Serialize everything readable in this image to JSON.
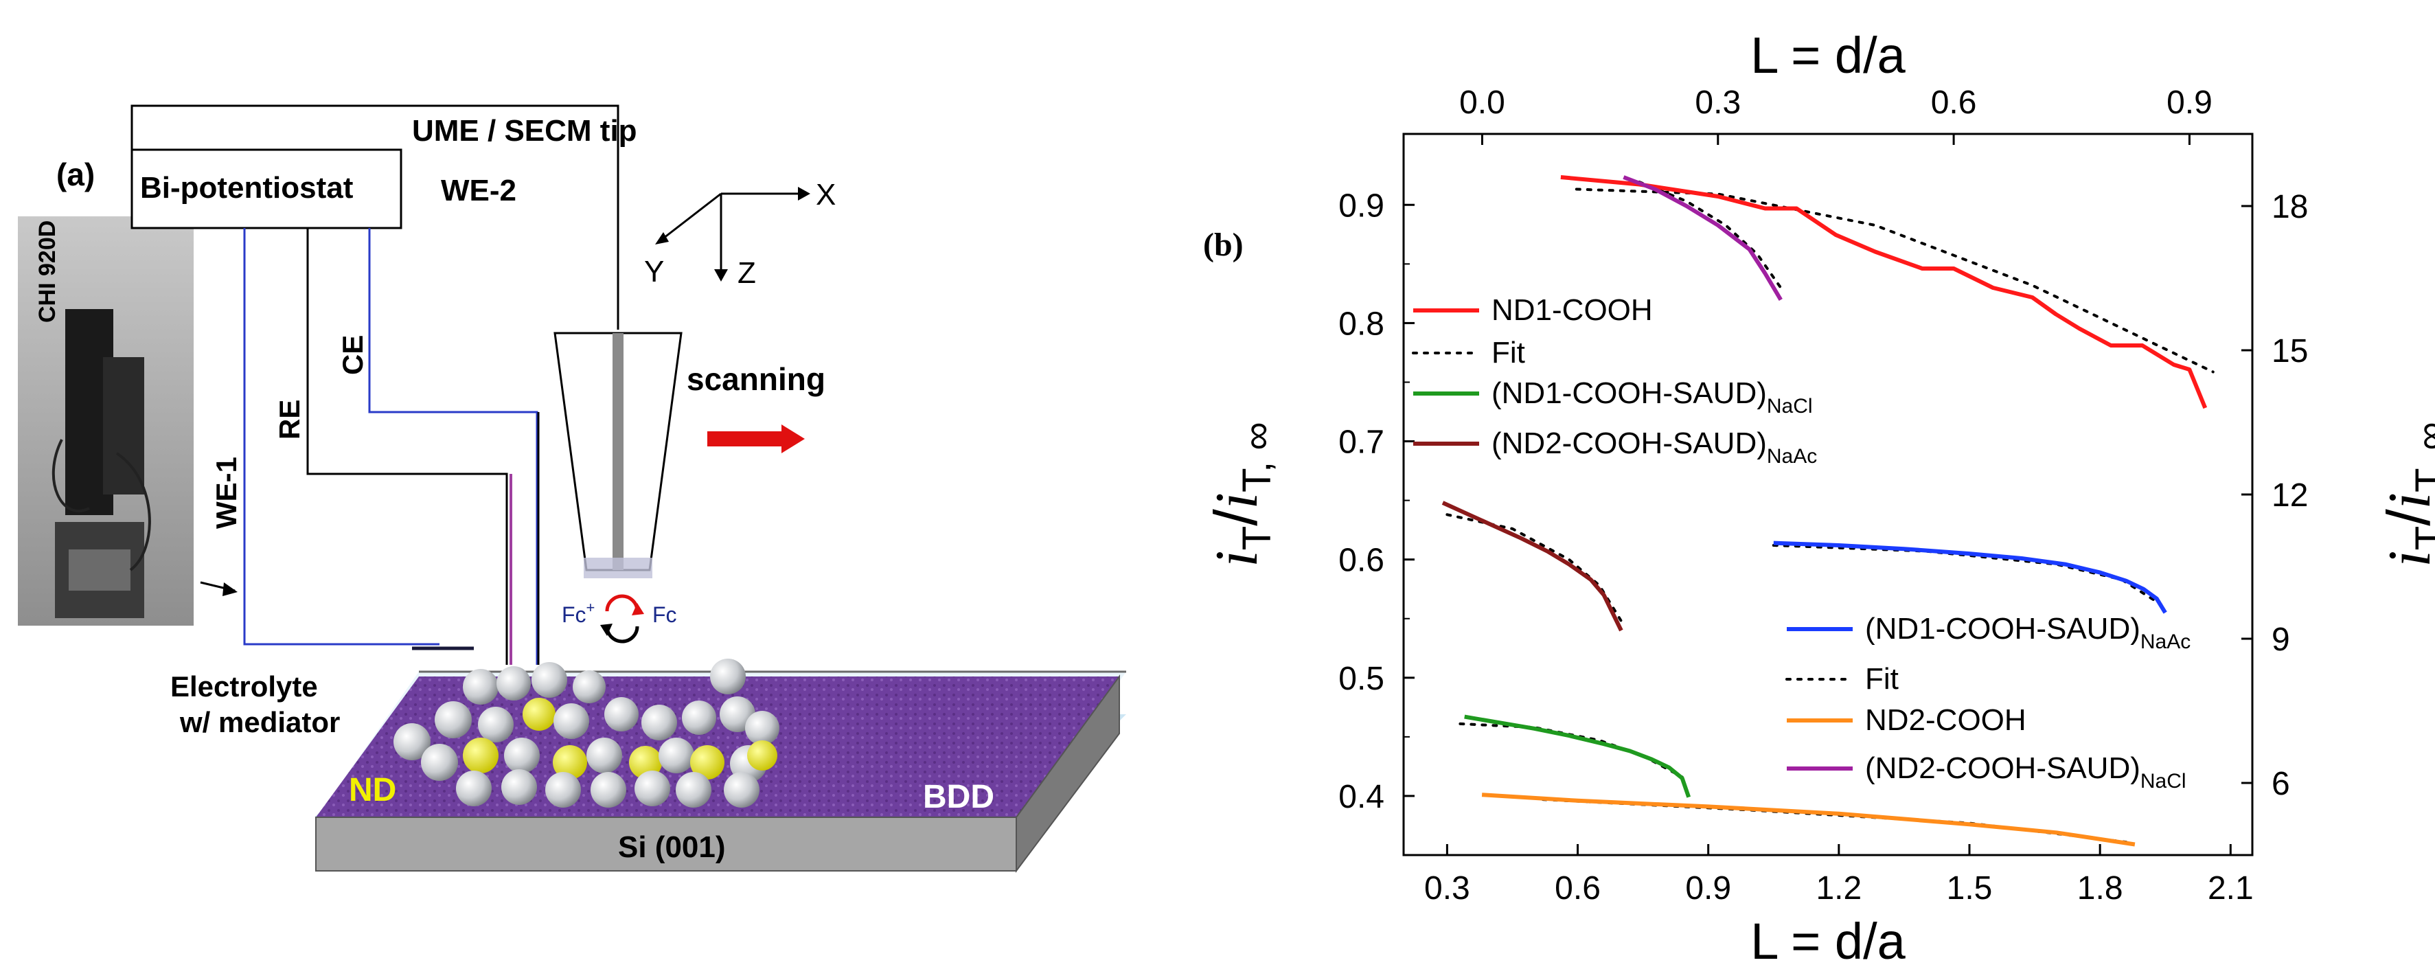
{
  "panel_a": {
    "label": "(a)",
    "instrument": "CHI 920D",
    "potentiostat": "Bi-potentiostat",
    "tip_label": "UME / SECM tip",
    "we2": "WE-2",
    "we1": "WE-1",
    "re": "RE",
    "ce": "CE",
    "axis_x": "X",
    "axis_y": "Y",
    "axis_z": "Z",
    "scanning": "scanning",
    "fc_plus": "Fc",
    "fc_plus_sup": "+",
    "fc": "Fc",
    "electrolyte_line1": "Electrolyte",
    "electrolyte_line2": "w/ mediator",
    "nd": "ND",
    "bdd": "BDD",
    "substrate": "Si (001)"
  },
  "chart_data": {
    "type": "line",
    "panel_label": "(b)",
    "xlabel": "L = d/a",
    "x2label": "L = d/a",
    "ylabel_main": "i",
    "ylabel_sub": "T",
    "ylabel_den_main": "i",
    "ylabel_den_sub": "T, ∞",
    "xlim": [
      0.2,
      2.15
    ],
    "xticks": [
      "0.3",
      "0.6",
      "0.9",
      "1.2",
      "1.5",
      "1.8",
      "2.1"
    ],
    "x2lim": [
      -0.1,
      0.98
    ],
    "x2ticks": [
      "0.0",
      "0.3",
      "0.6",
      "0.9"
    ],
    "ylim": [
      0.35,
      0.96
    ],
    "yticks": [
      "0.4",
      "0.5",
      "0.6",
      "0.7",
      "0.8",
      "0.9"
    ],
    "y2lim": [
      4.5,
      19.5
    ],
    "y2ticks": [
      "6",
      "9",
      "12",
      "15",
      "18"
    ],
    "fit_label": "Fit",
    "series": [
      {
        "name": "ND1-COOH",
        "color": "#ff1a1a",
        "axis": "top-right",
        "x": [
          0.1,
          0.2,
          0.3,
          0.36,
          0.4,
          0.45,
          0.5,
          0.56,
          0.6,
          0.65,
          0.7,
          0.73,
          0.76,
          0.8,
          0.84,
          0.88,
          0.9,
          0.92
        ],
        "y": [
          18.6,
          18.45,
          18.2,
          17.95,
          17.95,
          17.4,
          17.05,
          16.7,
          16.7,
          16.3,
          16.1,
          15.75,
          15.45,
          15.1,
          15.1,
          14.7,
          14.6,
          13.8
        ]
      },
      {
        "name": "ND2-COOH-SAUD",
        "subscript": "NaCl",
        "color": "#a020a0",
        "axis": "top-right",
        "x": [
          0.18,
          0.22,
          0.26,
          0.3,
          0.34,
          0.36,
          0.38
        ],
        "y": [
          18.6,
          18.35,
          18.0,
          17.6,
          17.1,
          16.6,
          16.05
        ]
      },
      {
        "name": "ND1-COOH-SAUD",
        "subscript": "NaAc",
        "color": "#1a3cff",
        "axis": "bottom-left",
        "x": [
          1.05,
          1.2,
          1.35,
          1.5,
          1.62,
          1.72,
          1.8,
          1.86,
          1.9,
          1.93,
          1.95
        ],
        "y": [
          0.614,
          0.612,
          0.609,
          0.605,
          0.601,
          0.596,
          0.589,
          0.582,
          0.575,
          0.567,
          0.555
        ]
      },
      {
        "name": "ND1-COOH-SAUD",
        "subscript": "NaCl",
        "color": "#1f9a1f",
        "axis": "bottom-left",
        "x": [
          0.34,
          0.42,
          0.5,
          0.58,
          0.66,
          0.72,
          0.77,
          0.81,
          0.84,
          0.855
        ],
        "y": [
          0.467,
          0.462,
          0.457,
          0.451,
          0.444,
          0.438,
          0.431,
          0.424,
          0.415,
          0.399
        ]
      },
      {
        "name": "ND2-COOH-SAUD",
        "subscript": "NaAc",
        "color": "#8b1a1a",
        "axis": "bottom-left",
        "x": [
          0.29,
          0.35,
          0.41,
          0.47,
          0.53,
          0.58,
          0.63,
          0.66,
          0.68,
          0.7
        ],
        "y": [
          0.648,
          0.638,
          0.628,
          0.618,
          0.607,
          0.596,
          0.583,
          0.57,
          0.555,
          0.54
        ]
      },
      {
        "name": "ND2-COOH",
        "color": "#ff8c1a",
        "axis": "bottom-left",
        "x": [
          0.38,
          0.6,
          0.9,
          1.2,
          1.5,
          1.7,
          1.88
        ],
        "y": [
          0.401,
          0.396,
          0.391,
          0.385,
          0.376,
          0.369,
          0.359
        ]
      }
    ],
    "fits": [
      {
        "axis": "top-right",
        "x": [
          0.12,
          0.3,
          0.5,
          0.7,
          0.93
        ],
        "y": [
          18.35,
          18.25,
          17.6,
          16.35,
          14.55
        ]
      },
      {
        "axis": "top-right",
        "x": [
          0.2,
          0.26,
          0.31,
          0.35,
          0.38
        ],
        "y": [
          18.5,
          18.1,
          17.6,
          17.0,
          16.3
        ]
      },
      {
        "axis": "bottom-left",
        "x": [
          1.05,
          1.4,
          1.7,
          1.85,
          1.94
        ],
        "y": [
          0.612,
          0.607,
          0.596,
          0.583,
          0.562
        ]
      },
      {
        "axis": "bottom-left",
        "x": [
          0.33,
          0.5,
          0.65,
          0.75,
          0.84
        ],
        "y": [
          0.461,
          0.458,
          0.447,
          0.434,
          0.416
        ]
      },
      {
        "axis": "bottom-left",
        "x": [
          0.3,
          0.45,
          0.58,
          0.65,
          0.7
        ],
        "y": [
          0.638,
          0.626,
          0.6,
          0.578,
          0.548
        ]
      },
      {
        "axis": "bottom-left",
        "x": [
          0.52,
          1.0,
          1.5,
          1.86
        ],
        "y": [
          0.397,
          0.388,
          0.377,
          0.361
        ]
      }
    ],
    "legend": [
      {
        "name": "ND1-COOH",
        "color": "#ff1a1a",
        "style": "solid"
      },
      {
        "name": "Fit",
        "color": "#000000",
        "style": "dotted"
      },
      {
        "name": "(ND1-COOH-SAUD)",
        "subscript": "NaCl",
        "color": "#1f9a1f",
        "style": "solid"
      },
      {
        "name": "(ND2-COOH-SAUD)",
        "subscript": "NaAc",
        "color": "#8b1a1a",
        "style": "solid"
      },
      {
        "name": "(ND1-COOH-SAUD)",
        "subscript": "NaAc",
        "color": "#1a3cff",
        "style": "solid"
      },
      {
        "name": "Fit",
        "color": "#000000",
        "style": "dotted"
      },
      {
        "name": "ND2-COOH",
        "color": "#ff8c1a",
        "style": "solid"
      },
      {
        "name": "(ND2-COOH-SAUD)",
        "subscript": "NaCl",
        "color": "#a020a0",
        "style": "solid"
      }
    ]
  }
}
